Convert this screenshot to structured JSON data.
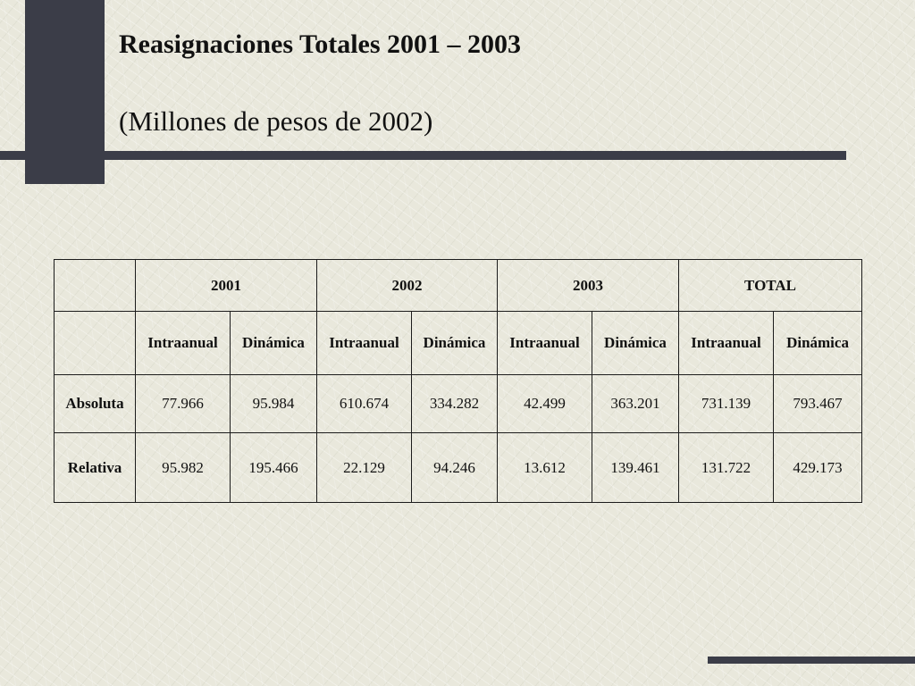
{
  "slide": {
    "title": "Reasignaciones Totales 2001 – 2003",
    "subtitle": "(Millones de pesos de 2002)"
  },
  "table": {
    "years": [
      "2001",
      "2002",
      "2003",
      "TOTAL"
    ],
    "sub_headers": [
      "Intraanual",
      "Dinámica",
      "Intraanual",
      "Dinámica",
      "Intraanual",
      "Dinámica",
      "Intraanual",
      "Dinámica"
    ],
    "rows": [
      {
        "label": "Absoluta",
        "values": [
          "77.966",
          "95.984",
          "610.674",
          "334.282",
          "42.499",
          "363.201",
          "731.139",
          "793.467"
        ]
      },
      {
        "label": "Relativa",
        "values": [
          "95.982",
          "195.466",
          "22.129",
          "94.246",
          "13.612",
          "139.461",
          "131.722",
          "429.173"
        ]
      }
    ]
  }
}
